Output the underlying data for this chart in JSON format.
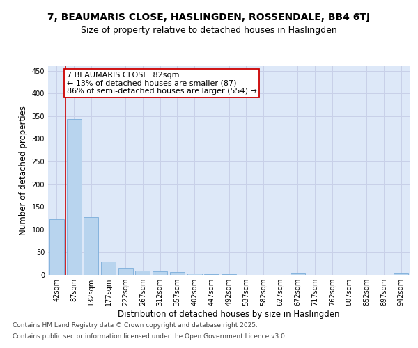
{
  "title": "7, BEAUMARIS CLOSE, HASLINGDEN, ROSSENDALE, BB4 6TJ",
  "subtitle": "Size of property relative to detached houses in Haslingden",
  "xlabel": "Distribution of detached houses by size in Haslingden",
  "ylabel": "Number of detached properties",
  "categories": [
    "42sqm",
    "87sqm",
    "132sqm",
    "177sqm",
    "222sqm",
    "267sqm",
    "312sqm",
    "357sqm",
    "402sqm",
    "447sqm",
    "492sqm",
    "537sqm",
    "582sqm",
    "627sqm",
    "672sqm",
    "717sqm",
    "762sqm",
    "807sqm",
    "852sqm",
    "897sqm",
    "942sqm"
  ],
  "values": [
    122,
    343,
    127,
    29,
    15,
    9,
    7,
    6,
    3,
    1,
    1,
    0,
    0,
    0,
    4,
    0,
    0,
    0,
    0,
    0,
    4
  ],
  "bar_color": "#b8d4ee",
  "bar_edge_color": "#7aadda",
  "grid_color": "#c8d0e8",
  "bg_color": "#dde8f8",
  "fig_bg_color": "#ffffff",
  "annotation_box_color": "#cc0000",
  "vline_color": "#cc0000",
  "vline_x_index": 1,
  "annotation_text_line1": "7 BEAUMARIS CLOSE: 82sqm",
  "annotation_text_line2": "← 13% of detached houses are smaller (87)",
  "annotation_text_line3": "86% of semi-detached houses are larger (554) →",
  "ylim": [
    0,
    460
  ],
  "yticks": [
    0,
    50,
    100,
    150,
    200,
    250,
    300,
    350,
    400,
    450
  ],
  "footer_line1": "Contains HM Land Registry data © Crown copyright and database right 2025.",
  "footer_line2": "Contains public sector information licensed under the Open Government Licence v3.0.",
  "title_fontsize": 10,
  "subtitle_fontsize": 9,
  "xlabel_fontsize": 8.5,
  "ylabel_fontsize": 8.5,
  "tick_fontsize": 7,
  "annotation_fontsize": 8,
  "footer_fontsize": 6.5
}
